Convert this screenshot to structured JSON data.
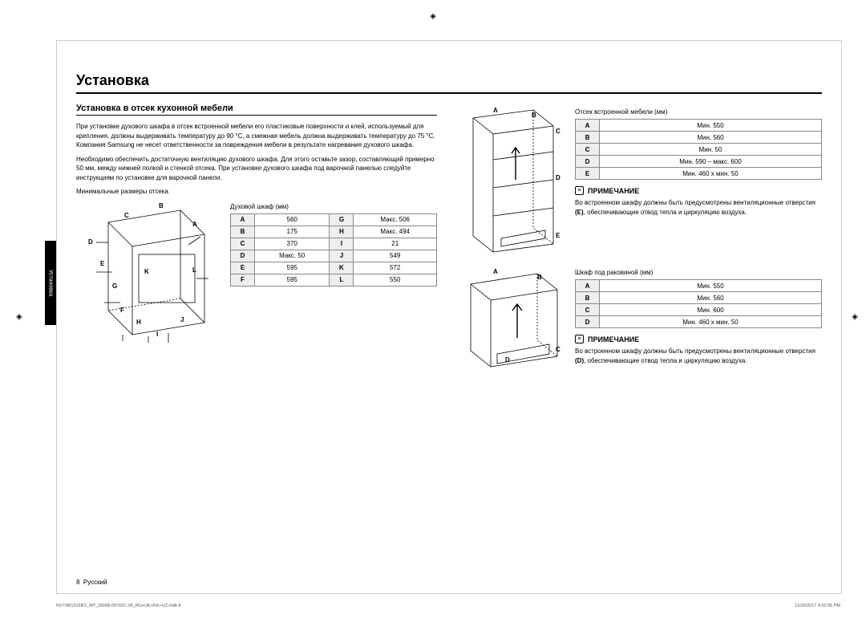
{
  "title": "Установка",
  "sideTab": "Установка",
  "subtitle": "Установка в отсек кухонной мебели",
  "para1": "При установке духового шкафа в отсек встроенной мебели его пластиковые поверхности и клей, используемый для крепления, должны выдерживать температуру до 90 °C, а смежная мебель должна выдерживать температуру до 75 °C. Компания Samsung не несет ответственности за повреждения мебели в результате нагревания духового шкафа.",
  "para2": "Необходимо обеспечить достаточную вентиляцию духового шкафа. Для этого оставьте зазор, составляющий примерно 50 мм, между нижней полкой и стенкой отсека. При установке духового шкафа под варочной панелью следуйте инструкциям по установке для варочной панели.",
  "minHeading": "Минимальные размеры отсека",
  "ovenTableTitle": "Духовой шкаф (мм)",
  "ovenTable": {
    "rows": [
      {
        "k1": "A",
        "v1": "560",
        "k2": "G",
        "v2": "Макс. 506"
      },
      {
        "k1": "B",
        "v1": "175",
        "k2": "H",
        "v2": "Макс. 494"
      },
      {
        "k1": "C",
        "v1": "370",
        "k2": "I",
        "v2": "21"
      },
      {
        "k1": "D",
        "v1": "Макс. 50",
        "k2": "J",
        "v2": "549"
      },
      {
        "k1": "E",
        "v1": "595",
        "k2": "K",
        "v2": "572"
      },
      {
        "k1": "F",
        "v1": "595",
        "k2": "L",
        "v2": "550"
      }
    ]
  },
  "cabinetTitle": "Отсек встроенной мебели (мм)",
  "cabinetTable": {
    "rows": [
      {
        "k": "A",
        "v": "Мин. 550"
      },
      {
        "k": "B",
        "v": "Мин. 560"
      },
      {
        "k": "C",
        "v": "Мин. 50"
      },
      {
        "k": "D",
        "v": "Мин. 590 – макс. 600"
      },
      {
        "k": "E",
        "v": "Мин. 460 x мин. 50"
      }
    ]
  },
  "noteLabel": "ПРИМЕЧАНИЕ",
  "note1": {
    "pre": "Во встроенном шкафу должны быть предусмотрены вентиляционные отверстия ",
    "hl": "(E)",
    "post": ", обеспечивающие отвод тепла и циркуляцию воздуха."
  },
  "sinkTitle": "Шкаф под раковиной (мм)",
  "sinkTable": {
    "rows": [
      {
        "k": "A",
        "v": "Мин. 550"
      },
      {
        "k": "B",
        "v": "Мин. 560"
      },
      {
        "k": "C",
        "v": "Мин. 600"
      },
      {
        "k": "D",
        "v": "Мин. 460 x мин. 50"
      }
    ]
  },
  "note2": {
    "pre": "Во встроенном шкафу должны быть предусмотрены вентиляционные отверстия ",
    "hl": "(D)",
    "post": ", обеспечивающие отвод тепла и циркуляцию воздуха."
  },
  "pageNum": "8",
  "lang": "Русский",
  "fileInfo": "NV70M1315BS_WT_DG68-00762C-00_RU+UK+KK+UZ.indb   8",
  "timestamp": "11/20/2017   4:52:05 PM",
  "ovenLabels": [
    "A",
    "B",
    "C",
    "D",
    "E",
    "F",
    "G",
    "H",
    "I",
    "J",
    "K",
    "L"
  ],
  "cabLabels": [
    "A",
    "B",
    "C",
    "D",
    "E"
  ],
  "sinkLabels": [
    "A",
    "B",
    "C",
    "D"
  ]
}
